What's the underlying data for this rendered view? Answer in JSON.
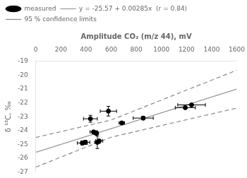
{
  "chart_data": {
    "type": "scatter",
    "xlabel": "Amplitude CO₂ (m/z 44), mV",
    "ylabel": "δ ¹³C, ‰",
    "xlim": [
      0,
      1600
    ],
    "xticks": [
      0,
      200,
      400,
      600,
      800,
      1000,
      1200,
      1400,
      1600
    ],
    "ylim": [
      -27,
      -19
    ],
    "yticks": [
      -27,
      -26,
      -25,
      -24,
      -23,
      -22,
      -21,
      -20,
      -19
    ],
    "grid": false,
    "legend": "upper left",
    "series": [
      {
        "name": "measured",
        "type": "scatter",
        "marker": "circle",
        "color": "#000000",
        "x": [
          370,
          395,
          435,
          460,
          472,
          482,
          490,
          505,
          578,
          685,
          855,
          1190,
          1240
        ],
        "values": [
          -24.9,
          -24.85,
          -23.15,
          -24.1,
          -24.15,
          -24.2,
          -24.85,
          -24.75,
          -22.6,
          -23.45,
          -23.1,
          -22.35,
          -22.15
        ],
        "xerr": [
          40,
          35,
          55,
          28,
          22,
          18,
          22,
          28,
          65,
          22,
          80,
          80,
          110
        ],
        "yerr": [
          0.15,
          0.15,
          0.25,
          0.1,
          0.1,
          0.1,
          0.45,
          0.1,
          0.35,
          0.1,
          0.13,
          0.1,
          0.1
        ]
      },
      {
        "name": "y = -25.57 + 0.00285x  (r = 0.84)",
        "type": "line",
        "line_style": "solid",
        "color": "#999999",
        "x": [
          0,
          600,
          1600
        ],
        "values": [
          -25.57,
          -23.86,
          -21.01
        ]
      },
      {
        "name": "95 % confidence limits",
        "type": "line",
        "line_style": "dashed",
        "color": "#888888",
        "x": [
          0,
          600,
          1600
        ],
        "values": [
          -24.5,
          -23.24,
          -19.64
        ]
      },
      {
        "name": "95 % confidence limits",
        "type": "line",
        "line_style": "dashed",
        "color": "#888888",
        "x": [
          0,
          600,
          1600
        ],
        "values": [
          -26.64,
          -24.48,
          -22.38
        ]
      }
    ]
  }
}
